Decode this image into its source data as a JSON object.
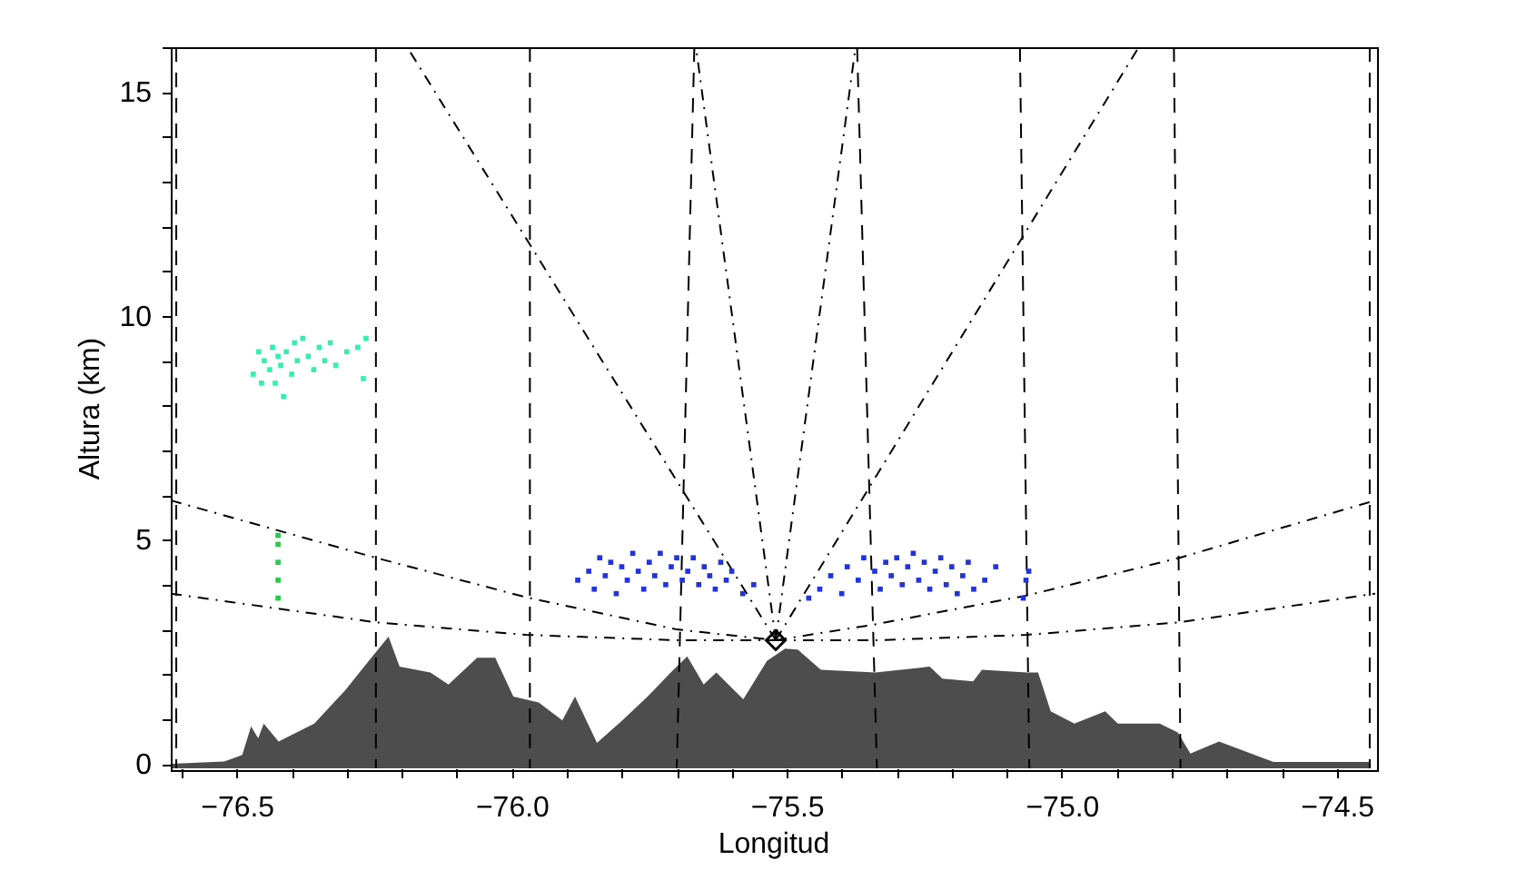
{
  "chart_data": {
    "type": "line",
    "xlabel": "Longitud",
    "ylabel": "Altura (km)",
    "xlim": [
      -76.62,
      -74.43
    ],
    "ylim": [
      -0.1,
      16
    ],
    "xticks": [
      {
        "value": -76.6,
        "label": null
      },
      {
        "value": -76.5,
        "label": "−76.5"
      },
      {
        "value": -76.4,
        "label": null
      },
      {
        "value": -76.3,
        "label": null
      },
      {
        "value": -76.2,
        "label": null
      },
      {
        "value": -76.1,
        "label": null
      },
      {
        "value": -76.0,
        "label": "−76.0"
      },
      {
        "value": -75.9,
        "label": null
      },
      {
        "value": -75.8,
        "label": null
      },
      {
        "value": -75.7,
        "label": null
      },
      {
        "value": -75.6,
        "label": null
      },
      {
        "value": -75.5,
        "label": "−75.5"
      },
      {
        "value": -75.4,
        "label": null
      },
      {
        "value": -75.3,
        "label": null
      },
      {
        "value": -75.2,
        "label": null
      },
      {
        "value": -75.1,
        "label": null
      },
      {
        "value": -75.0,
        "label": "−75.0"
      },
      {
        "value": -74.9,
        "label": null
      },
      {
        "value": -74.8,
        "label": null
      },
      {
        "value": -74.7,
        "label": null
      },
      {
        "value": -74.6,
        "label": null
      },
      {
        "value": -74.5,
        "label": "−74.5"
      }
    ],
    "yticks": [
      0,
      {
        "value": 1,
        "label": null
      },
      {
        "value": 2,
        "label": null
      },
      {
        "value": 3,
        "label": null
      },
      {
        "value": 4,
        "label": null
      },
      5,
      {
        "value": 6,
        "label": null
      },
      {
        "value": 7,
        "label": null
      },
      {
        "value": 8,
        "label": null
      },
      {
        "value": 9,
        "label": null
      },
      10,
      {
        "value": 11,
        "label": null
      },
      {
        "value": 12,
        "label": null
      },
      {
        "value": 13,
        "label": null
      },
      {
        "value": 14,
        "label": null
      },
      15,
      {
        "value": 16,
        "label": null
      }
    ],
    "series": [
      {
        "type": "area",
        "color": "#4d4d4d",
        "x": [
          -76.618,
          -76.523,
          -76.49,
          -76.474,
          -76.461,
          -76.451,
          -76.424,
          -76.359,
          -76.303,
          -76.26,
          -76.224,
          -76.204,
          -76.148,
          -76.115,
          -76.063,
          -76.03,
          -75.997,
          -75.951,
          -75.908,
          -75.885,
          -75.845,
          -75.799,
          -75.753,
          -75.711,
          -75.681,
          -75.651,
          -75.628,
          -75.579,
          -75.536,
          -75.503,
          -75.48,
          -75.438,
          -75.339,
          -75.24,
          -75.217,
          -75.161,
          -75.145,
          -75.063,
          -75.043,
          -75.02,
          -74.977,
          -74.921,
          -74.898,
          -74.822,
          -74.789,
          -74.766,
          -74.714,
          -74.615,
          -74.438
        ],
        "values": [
          0.0,
          0.05,
          0.2,
          0.84,
          0.57,
          0.9,
          0.5,
          0.9,
          1.64,
          2.3,
          2.84,
          2.17,
          2.04,
          1.77,
          2.37,
          2.37,
          1.5,
          1.37,
          0.97,
          1.5,
          0.47,
          0.97,
          1.5,
          2.04,
          2.4,
          1.77,
          2.04,
          1.44,
          2.3,
          2.57,
          2.55,
          2.1,
          2.04,
          2.17,
          1.9,
          1.84,
          2.1,
          2.04,
          2.04,
          1.17,
          0.9,
          1.17,
          0.9,
          0.9,
          0.7,
          0.23,
          0.5,
          0.04,
          0.04
        ]
      },
      {
        "line_style": "dashed",
        "color": "#000000",
        "x": [
          -76.247,
          -76.247
        ],
        "values": [
          16,
          -0.1
        ]
      },
      {
        "line_style": "dashed",
        "color": "#000000",
        "x": [
          -75.967,
          -75.967
        ],
        "values": [
          16,
          -0.1
        ]
      },
      {
        "line_style": "dashed",
        "color": "#000000",
        "x": [
          -75.668,
          -75.7
        ],
        "values": [
          16,
          -0.1
        ]
      },
      {
        "line_style": "dashed",
        "color": "#000000",
        "x": [
          -75.372,
          -75.336
        ],
        "values": [
          16,
          -0.1
        ]
      },
      {
        "line_style": "dashed",
        "color": "#000000",
        "x": [
          -75.076,
          -75.059
        ],
        "values": [
          16,
          -0.1
        ]
      },
      {
        "line_style": "dashdot",
        "color": "#000000",
        "x": [
          -75.52,
          -76.19
        ],
        "values": [
          2.76,
          16
        ]
      },
      {
        "line_style": "dashdot",
        "color": "#000000",
        "x": [
          -75.52,
          -75.665
        ],
        "values": [
          2.76,
          16
        ]
      },
      {
        "line_style": "dashdot",
        "color": "#000000",
        "x": [
          -75.52,
          -75.375
        ],
        "values": [
          2.76,
          16
        ]
      },
      {
        "line_style": "dashdot",
        "color": "#000000",
        "x": [
          -75.52,
          -74.86
        ],
        "values": [
          2.76,
          16
        ]
      },
      {
        "line_style": "dashdot",
        "color": "#000000",
        "x": [
          -76.62,
          -76.247,
          -75.974,
          -75.7,
          -75.52
        ],
        "values": [
          5.88,
          4.6,
          3.72,
          3.0,
          2.76
        ]
      },
      {
        "line_style": "dashdot",
        "color": "#000000",
        "x": [
          -76.62,
          -76.247,
          -75.974,
          -75.7,
          -75.52
        ],
        "values": [
          3.8,
          3.16,
          2.88,
          2.76,
          2.76
        ]
      },
      {
        "line_style": "dashdot",
        "color": "#000000",
        "x": [
          -75.52,
          -75.336,
          -75.063,
          -74.786,
          -74.43
        ],
        "values": [
          2.76,
          3.12,
          3.76,
          4.6,
          5.88
        ]
      },
      {
        "line_style": "dashdot",
        "color": "#000000",
        "x": [
          -75.52,
          -75.336,
          -75.063,
          -74.786,
          -74.43
        ],
        "values": [
          2.76,
          2.76,
          2.88,
          3.16,
          3.8
        ]
      },
      {
        "type": "scatter",
        "marker": "square",
        "color": "#33f0b0",
        "x": [
          -76.47,
          -76.46,
          -76.455,
          -76.45,
          -76.44,
          -76.435,
          -76.43,
          -76.425,
          -76.42,
          -76.415,
          -76.41,
          -76.4,
          -76.395,
          -76.39,
          -76.38,
          -76.37,
          -76.36,
          -76.35,
          -76.34,
          -76.33,
          -76.32,
          -76.3,
          -76.28,
          -76.27,
          -76.265
        ],
        "values": [
          8.7,
          9.2,
          8.5,
          9.0,
          8.8,
          9.3,
          8.5,
          9.1,
          8.9,
          8.2,
          9.2,
          8.7,
          9.4,
          9.0,
          9.5,
          9.1,
          8.8,
          9.3,
          9.0,
          9.4,
          8.9,
          9.2,
          9.3,
          8.6,
          9.5
        ]
      },
      {
        "type": "scatter",
        "marker": "square",
        "color": "#22cc44",
        "x": [
          -76.425,
          -76.425,
          -76.425,
          -76.425,
          -76.425
        ],
        "values": [
          3.7,
          4.1,
          4.5,
          4.9,
          5.1
        ]
      },
      {
        "type": "scatter",
        "marker": "square",
        "color": "#2233dd",
        "x": [
          -75.88,
          -75.86,
          -75.85,
          -75.84,
          -75.83,
          -75.82,
          -75.81,
          -75.8,
          -75.79,
          -75.78,
          -75.77,
          -75.76,
          -75.75,
          -75.74,
          -75.73,
          -75.72,
          -75.71,
          -75.7,
          -75.69,
          -75.68,
          -75.67,
          -75.66,
          -75.65,
          -75.64,
          -75.63,
          -75.62,
          -75.61,
          -75.6,
          -75.58,
          -75.56,
          -75.46,
          -75.44,
          -75.42,
          -75.4,
          -75.39,
          -75.37,
          -75.36,
          -75.34,
          -75.33,
          -75.32,
          -75.31,
          -75.3,
          -75.29,
          -75.28,
          -75.27,
          -75.26,
          -75.25,
          -75.24,
          -75.23,
          -75.22,
          -75.21,
          -75.2,
          -75.19,
          -75.18,
          -75.17,
          -75.16,
          -75.14,
          -75.12,
          -75.07,
          -75.065,
          -75.06
        ],
        "values": [
          4.1,
          4.3,
          3.9,
          4.6,
          4.2,
          4.5,
          3.8,
          4.4,
          4.1,
          4.7,
          4.3,
          3.9,
          4.5,
          4.2,
          4.7,
          4.0,
          4.4,
          4.6,
          4.1,
          4.3,
          4.6,
          4.0,
          4.4,
          4.2,
          3.9,
          4.5,
          4.1,
          4.3,
          3.8,
          4.0,
          3.7,
          3.9,
          4.2,
          3.8,
          4.4,
          4.1,
          4.6,
          4.3,
          3.9,
          4.5,
          4.2,
          4.6,
          4.0,
          4.4,
          4.7,
          4.1,
          4.5,
          3.9,
          4.3,
          4.6,
          4.0,
          4.4,
          3.8,
          4.2,
          4.5,
          3.9,
          4.1,
          4.4,
          3.7,
          4.1,
          4.3
        ]
      },
      {
        "type": "scatter",
        "marker": "diamond",
        "color": "#000000",
        "x": [
          -75.52
        ],
        "values": [
          2.76
        ]
      },
      {
        "line_style": "dashed",
        "color": "#000000",
        "x": [
          -76.61,
          -76.61
        ],
        "values": [
          16,
          -0.1
        ]
      },
      {
        "line_style": "dashed",
        "color": "#000000",
        "x": [
          -74.44,
          -74.44
        ],
        "values": [
          16,
          -0.1
        ]
      },
      {
        "line_style": "dashed",
        "color": "#000000",
        "x": [
          -74.796,
          -74.784
        ],
        "values": [
          16,
          -0.1
        ]
      }
    ]
  }
}
